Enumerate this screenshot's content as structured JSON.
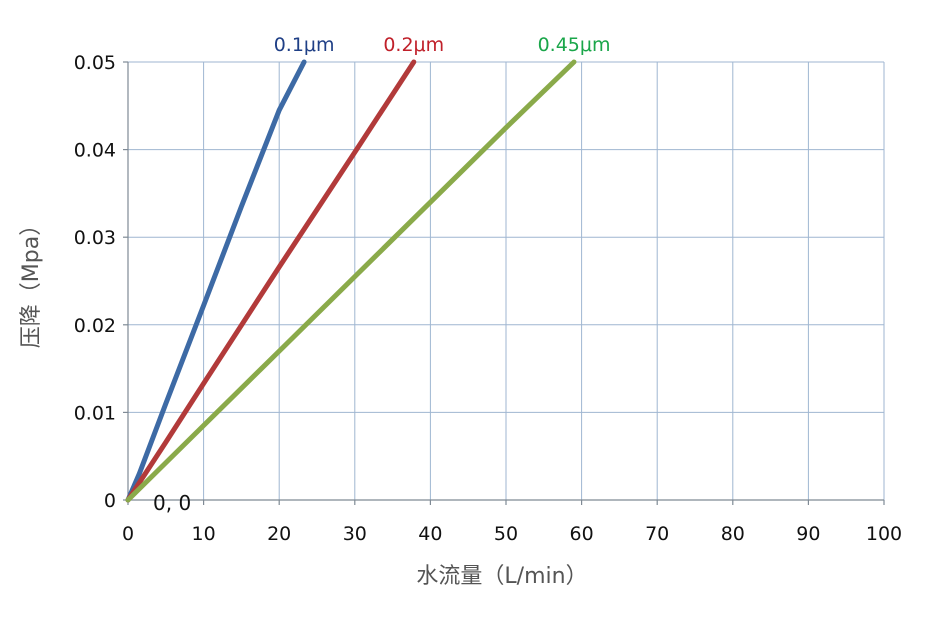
{
  "chart_data": {
    "type": "line",
    "title": "",
    "xlabel": "水流量（L/min）",
    "ylabel": "压降（Mpa）",
    "xlim": [
      0,
      100
    ],
    "ylim": [
      0,
      0.05
    ],
    "x_ticks": [
      "0",
      "10",
      "20",
      "30",
      "40",
      "50",
      "60",
      "70",
      "80",
      "90",
      "100"
    ],
    "y_ticks": [
      "0",
      "0.01",
      "0.02",
      "0.03",
      "0.04",
      "0.05"
    ],
    "grid": true,
    "origin_annotation": "0, 0",
    "series": [
      {
        "name": "0.1μm",
        "color": "#3d6aa5",
        "label_color": "#1f3f86",
        "points": [
          [
            0,
            0
          ],
          [
            1.5,
            0.003
          ],
          [
            5,
            0.011
          ],
          [
            10,
            0.0222
          ],
          [
            15,
            0.0335
          ],
          [
            20,
            0.0445
          ],
          [
            23.3,
            0.05
          ]
        ]
      },
      {
        "name": "0.2μm",
        "color": "#b23a3a",
        "label_color": "#c0202a",
        "points": [
          [
            0,
            0
          ],
          [
            5,
            0.0066
          ],
          [
            10,
            0.0133
          ],
          [
            20,
            0.0266
          ],
          [
            30,
            0.0397
          ],
          [
            37.8,
            0.05
          ]
        ]
      },
      {
        "name": "0.45μm",
        "color": "#8aaa4a",
        "label_color": "#1aa64a",
        "points": [
          [
            0,
            0
          ],
          [
            10,
            0.0085
          ],
          [
            20,
            0.017
          ],
          [
            30,
            0.0255
          ],
          [
            40,
            0.034
          ],
          [
            50,
            0.0425
          ],
          [
            59,
            0.05
          ]
        ]
      }
    ]
  }
}
